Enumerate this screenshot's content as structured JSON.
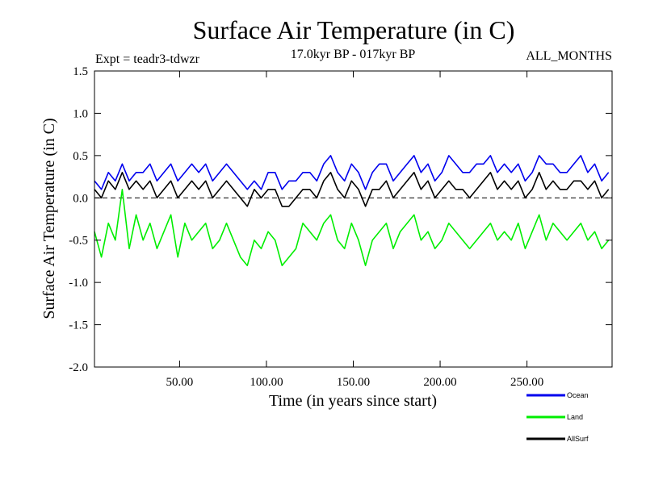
{
  "chart_data": {
    "type": "line",
    "title": "Surface Air Temperature (in C)",
    "subtitle_left": "Expt = teadr3-tdwzr",
    "subtitle_center": "17.0kyr BP - 017kyr BP",
    "subtitle_right": "ALL_MONTHS",
    "xlabel": "Time (in years since start)",
    "ylabel": "Surface Air Temperature (in C)",
    "xlim": [
      1,
      299
    ],
    "ylim": [
      -2.0,
      1.5
    ],
    "x_ticks": [
      50,
      100,
      150,
      200,
      250
    ],
    "x_tick_labels": [
      "50.00",
      "100.00",
      "150.00",
      "200.00",
      "250.00"
    ],
    "y_ticks": [
      -2.0,
      -1.5,
      -1.0,
      -0.5,
      0.0,
      0.5,
      1.0,
      1.5
    ],
    "y_tick_labels": [
      "-2.0",
      "-1.5",
      "-1.0",
      "-0.5",
      "0.0",
      "0.5",
      "1.0",
      "1.5"
    ],
    "reference_line": 0.0,
    "series": [
      {
        "name": "Land",
        "color": "#00ee00",
        "x_start": 1,
        "x_step": 4,
        "values": [
          -0.4,
          -0.7,
          -0.3,
          -0.5,
          0.1,
          -0.6,
          -0.2,
          -0.5,
          -0.3,
          -0.6,
          -0.4,
          -0.2,
          -0.7,
          -0.3,
          -0.5,
          -0.4,
          -0.3,
          -0.6,
          -0.5,
          -0.3,
          -0.5,
          -0.7,
          -0.8,
          -0.5,
          -0.6,
          -0.4,
          -0.5,
          -0.8,
          -0.7,
          -0.6,
          -0.3,
          -0.4,
          -0.5,
          -0.3,
          -0.2,
          -0.5,
          -0.6,
          -0.3,
          -0.5,
          -0.8,
          -0.5,
          -0.4,
          -0.3,
          -0.6,
          -0.4,
          -0.3,
          -0.2,
          -0.5,
          -0.4,
          -0.6,
          -0.5,
          -0.3,
          -0.4,
          -0.5,
          -0.6,
          -0.5,
          -0.4,
          -0.3,
          -0.5,
          -0.4,
          -0.5,
          -0.3,
          -0.6,
          -0.4,
          -0.2,
          -0.5,
          -0.3,
          -0.4,
          -0.5,
          -0.4,
          -0.3,
          -0.5,
          -0.4,
          -0.6,
          -0.5
        ]
      },
      {
        "name": "AllSurf",
        "color": "#000000",
        "x_start": 1,
        "x_step": 4,
        "values": [
          0.1,
          0.0,
          0.2,
          0.1,
          0.3,
          0.1,
          0.2,
          0.1,
          0.2,
          0.0,
          0.1,
          0.2,
          0.0,
          0.1,
          0.2,
          0.1,
          0.2,
          0.0,
          0.1,
          0.2,
          0.1,
          0.0,
          -0.1,
          0.1,
          0.0,
          0.1,
          0.1,
          -0.1,
          -0.1,
          0.0,
          0.1,
          0.1,
          0.0,
          0.2,
          0.3,
          0.1,
          0.0,
          0.2,
          0.1,
          -0.1,
          0.1,
          0.1,
          0.2,
          0.0,
          0.1,
          0.2,
          0.3,
          0.1,
          0.2,
          0.0,
          0.1,
          0.2,
          0.1,
          0.1,
          0.0,
          0.1,
          0.2,
          0.3,
          0.1,
          0.2,
          0.1,
          0.2,
          0.0,
          0.1,
          0.3,
          0.1,
          0.2,
          0.1,
          0.1,
          0.2,
          0.2,
          0.1,
          0.2,
          0.0,
          0.1
        ]
      },
      {
        "name": "Ocean",
        "color": "#0000ee",
        "x_start": 1,
        "x_step": 4,
        "values": [
          0.2,
          0.1,
          0.3,
          0.2,
          0.4,
          0.2,
          0.3,
          0.3,
          0.4,
          0.2,
          0.3,
          0.4,
          0.2,
          0.3,
          0.4,
          0.3,
          0.4,
          0.2,
          0.3,
          0.4,
          0.3,
          0.2,
          0.1,
          0.2,
          0.1,
          0.3,
          0.3,
          0.1,
          0.2,
          0.2,
          0.3,
          0.3,
          0.2,
          0.4,
          0.5,
          0.3,
          0.2,
          0.4,
          0.3,
          0.1,
          0.3,
          0.4,
          0.4,
          0.2,
          0.3,
          0.4,
          0.5,
          0.3,
          0.4,
          0.2,
          0.3,
          0.5,
          0.4,
          0.3,
          0.3,
          0.4,
          0.4,
          0.5,
          0.3,
          0.4,
          0.3,
          0.4,
          0.2,
          0.3,
          0.5,
          0.4,
          0.4,
          0.3,
          0.3,
          0.4,
          0.5,
          0.3,
          0.4,
          0.2,
          0.3
        ]
      }
    ],
    "legend": {
      "placement": "bottom-right",
      "entries": [
        {
          "label": "Ocean",
          "color": "#0000ee"
        },
        {
          "label": "Land",
          "color": "#00ee00"
        },
        {
          "label": "AllSurf",
          "color": "#000000"
        }
      ]
    }
  }
}
